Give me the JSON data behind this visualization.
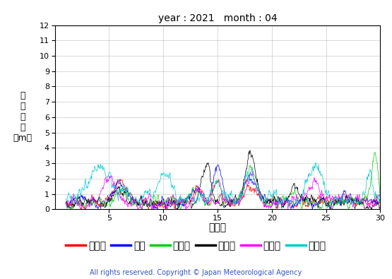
{
  "title": "year : 2021   month : 04",
  "xlabel": "（日）",
  "ylabel_lines": [
    "有",
    "義",
    "波",
    "高",
    "（m）"
  ],
  "copyright": "All rights reserved. Copyright © Japan Meteorological Agency",
  "xlim": [
    1,
    30
  ],
  "ylim": [
    0,
    12
  ],
  "yticks": [
    0,
    1,
    2,
    3,
    4,
    5,
    6,
    7,
    8,
    9,
    10,
    11,
    12
  ],
  "xticks": [
    5,
    10,
    15,
    20,
    25,
    30
  ],
  "legend_labels": [
    "上ノ国",
    "唐桑",
    "石廂崎",
    "経ヶ尬",
    "生月島",
    "屋久島"
  ],
  "colors": [
    "#ff0000",
    "#0000ff",
    "#00cc00",
    "#000000",
    "#ff00ff",
    "#00cccc"
  ],
  "background_color": "#ffffff"
}
